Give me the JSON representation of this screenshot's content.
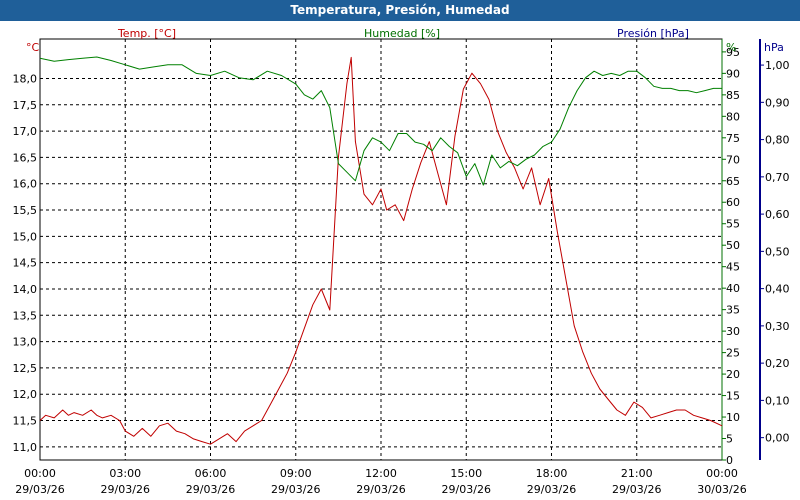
{
  "window": {
    "title": "Temperatura, Presión, Humedad"
  },
  "chart_data": {
    "type": "line",
    "title": "Temperatura, Presión, Humedad",
    "grid": true,
    "x_axis": {
      "ticks": [
        {
          "time": "00:00",
          "date": "29/03/26"
        },
        {
          "time": "03:00",
          "date": "29/03/26"
        },
        {
          "time": "06:00",
          "date": "29/03/26"
        },
        {
          "time": "09:00",
          "date": "29/03/26"
        },
        {
          "time": "12:00",
          "date": "29/03/26"
        },
        {
          "time": "15:00",
          "date": "29/03/26"
        },
        {
          "time": "18:00",
          "date": "29/03/26"
        },
        {
          "time": "21:00",
          "date": "29/03/26"
        },
        {
          "time": "00:00",
          "date": "30/03/26"
        }
      ],
      "range_hours": [
        0,
        24
      ]
    },
    "axes": {
      "temp": {
        "header": "Temp. [°C]",
        "unit": "°C",
        "range": [
          10.75,
          18.75
        ],
        "ticks": [
          "11,0",
          "11,5",
          "12,0",
          "12,5",
          "13,0",
          "13,5",
          "14,0",
          "14,5",
          "15,0",
          "15,5",
          "16,0",
          "16,5",
          "17,0",
          "17,5",
          "18,0"
        ],
        "color": "#b00000"
      },
      "humidity": {
        "header": "Humedad [%]",
        "unit": "%",
        "range": [
          0,
          98
        ],
        "ticks": [
          "0",
          "5",
          "10",
          "15",
          "20",
          "25",
          "30",
          "35",
          "40",
          "45",
          "50",
          "55",
          "60",
          "65",
          "70",
          "75",
          "80",
          "85",
          "90",
          "95"
        ],
        "color": "#007000"
      },
      "pressure": {
        "header": "Presión [hPa]",
        "unit": "hPa",
        "range": [
          -0.06,
          1.07
        ],
        "ticks": [
          "0,00",
          "0,10",
          "0,20",
          "0,30",
          "0,40",
          "0,50",
          "0,60",
          "0,70",
          "0,80",
          "0,90",
          "1,00"
        ],
        "color": "#00008b"
      }
    },
    "series": [
      {
        "name": "Temp. [°C]",
        "axis": "temp",
        "color": "#c00000",
        "x": [
          0,
          0.2,
          0.5,
          0.8,
          1.0,
          1.2,
          1.5,
          1.8,
          2.0,
          2.2,
          2.5,
          2.8,
          3.0,
          3.3,
          3.6,
          3.9,
          4.2,
          4.5,
          4.8,
          5.1,
          5.4,
          5.7,
          6.0,
          6.3,
          6.6,
          6.9,
          7.2,
          7.5,
          7.8,
          8.1,
          8.4,
          8.7,
          9.0,
          9.3,
          9.6,
          9.9,
          10.2,
          10.5,
          10.8,
          10.95,
          11.1,
          11.4,
          11.7,
          12.0,
          12.2,
          12.5,
          12.8,
          13.1,
          13.4,
          13.7,
          14.0,
          14.3,
          14.6,
          14.9,
          15.2,
          15.5,
          15.8,
          16.1,
          16.4,
          16.7,
          17.0,
          17.3,
          17.6,
          17.9,
          18.2,
          18.5,
          18.8,
          19.1,
          19.4,
          19.7,
          20.0,
          20.3,
          20.6,
          20.9,
          21.2,
          21.5,
          21.8,
          22.1,
          22.4,
          22.7,
          23.0,
          23.3,
          23.6,
          24.0
        ],
        "values": [
          11.5,
          11.6,
          11.55,
          11.7,
          11.6,
          11.65,
          11.6,
          11.7,
          11.6,
          11.55,
          11.6,
          11.5,
          11.3,
          11.2,
          11.35,
          11.2,
          11.4,
          11.45,
          11.3,
          11.25,
          11.15,
          11.1,
          11.05,
          11.15,
          11.25,
          11.1,
          11.3,
          11.4,
          11.5,
          11.8,
          12.1,
          12.4,
          12.8,
          13.25,
          13.7,
          14.0,
          13.6,
          16.5,
          17.9,
          18.4,
          16.8,
          15.8,
          15.6,
          15.9,
          15.5,
          15.6,
          15.3,
          15.9,
          16.4,
          16.8,
          16.2,
          15.6,
          16.9,
          17.8,
          18.1,
          17.9,
          17.6,
          17.0,
          16.6,
          16.3,
          15.9,
          16.3,
          15.6,
          16.1,
          15.1,
          14.2,
          13.3,
          12.8,
          12.4,
          12.1,
          11.9,
          11.7,
          11.6,
          11.85,
          11.75,
          11.55,
          11.6,
          11.65,
          11.7,
          11.7,
          11.6,
          11.55,
          11.5,
          11.4
        ]
      },
      {
        "name": "Humedad [%]",
        "axis": "humidity",
        "color": "#008000",
        "x": [
          0,
          0.5,
          1.0,
          1.5,
          2.0,
          2.5,
          3.0,
          3.5,
          4.0,
          4.5,
          5.0,
          5.5,
          6.0,
          6.5,
          7.0,
          7.5,
          8.0,
          8.5,
          9.0,
          9.3,
          9.6,
          9.9,
          10.2,
          10.5,
          10.8,
          11.1,
          11.4,
          11.7,
          12.0,
          12.3,
          12.6,
          12.9,
          13.2,
          13.5,
          13.8,
          14.1,
          14.4,
          14.7,
          15.0,
          15.3,
          15.6,
          15.9,
          16.2,
          16.5,
          16.8,
          17.1,
          17.4,
          17.7,
          18.0,
          18.3,
          18.6,
          18.9,
          19.2,
          19.5,
          19.8,
          20.1,
          20.4,
          20.7,
          21.0,
          21.3,
          21.6,
          21.9,
          22.2,
          22.5,
          22.8,
          23.1,
          23.4,
          23.7,
          24.0
        ],
        "values": [
          93.5,
          92.8,
          93.2,
          93.5,
          93.8,
          93.0,
          92.0,
          91.0,
          91.5,
          92.0,
          92.0,
          90.0,
          89.5,
          90.5,
          89.0,
          88.5,
          90.5,
          89.5,
          87.5,
          85.0,
          84.0,
          86.0,
          82.0,
          69.0,
          67.0,
          65.0,
          72.0,
          75.0,
          74.0,
          72.0,
          76.0,
          76.0,
          74.0,
          73.5,
          72.0,
          75.0,
          73.0,
          71.5,
          66.0,
          69.0,
          64.0,
          71.0,
          68.0,
          69.5,
          68.5,
          70.0,
          71.0,
          73.0,
          74.0,
          77.0,
          82.0,
          86.0,
          89.0,
          90.5,
          89.5,
          90.0,
          89.5,
          90.5,
          90.5,
          89.0,
          87.0,
          86.5,
          86.5,
          86.0,
          86.0,
          85.5,
          86.0,
          86.5,
          86.5
        ]
      }
    ]
  }
}
